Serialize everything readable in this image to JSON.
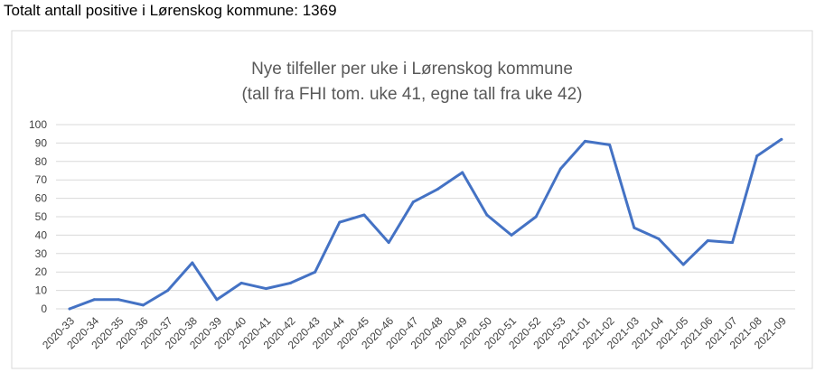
{
  "page": {
    "heading": "Totalt antall positive i Lørenskog kommune: 1369"
  },
  "chart_data": {
    "type": "line",
    "title": "Nye tilfeller per uke i Lørenskog kommune",
    "subtitle": "(tall fra FHI tom. uke 41, egne tall fra uke 42)",
    "xlabel": "",
    "ylabel": "",
    "ylim": [
      0,
      100
    ],
    "yticks": [
      0,
      10,
      20,
      30,
      40,
      50,
      60,
      70,
      80,
      90,
      100
    ],
    "grid": true,
    "legend": "none",
    "line_color": "#4472C4",
    "categories": [
      "2020-33",
      "2020-34",
      "2020-35",
      "2020-36",
      "2020-37",
      "2020-38",
      "2020-39",
      "2020-40",
      "2020-41",
      "2020-42",
      "2020-43",
      "2020-44",
      "2020-45",
      "2020-46",
      "2020-47",
      "2020-48",
      "2020-49",
      "2020-50",
      "2020-51",
      "2020-52",
      "2020-53",
      "2021-01",
      "2021-02",
      "2021-03",
      "2021-04",
      "2021-05",
      "2021-06",
      "2021-07",
      "2021-08",
      "2021-09"
    ],
    "values": [
      0,
      5,
      5,
      2,
      10,
      25,
      5,
      14,
      11,
      14,
      20,
      47,
      51,
      36,
      58,
      65,
      74,
      51,
      40,
      50,
      76,
      91,
      89,
      44,
      38,
      24,
      37,
      36,
      83,
      92
    ]
  }
}
